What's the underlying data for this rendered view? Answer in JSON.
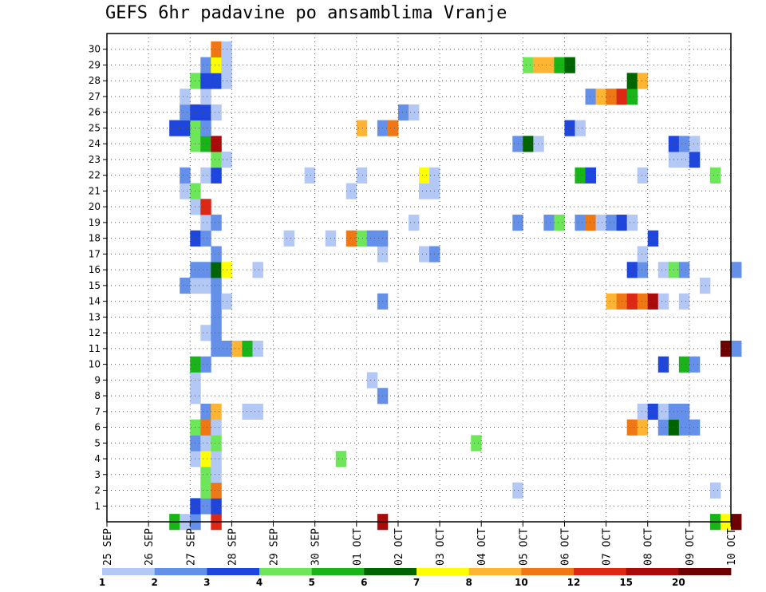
{
  "title": "GEFS 6hr padavine po ansamblima Vranje",
  "chart_data": {
    "type": "heatmap",
    "title": "GEFS 6hr padavine po ansamblima Vranje",
    "x_tick_labels": [
      "25 SEP",
      "26 SEP",
      "27 SEP",
      "28 SEP",
      "29 SEP",
      "30 SEP",
      "01 OCT",
      "02 OCT",
      "03 OCT",
      "04 OCT",
      "05 OCT",
      "06 OCT",
      "07 OCT",
      "08 OCT",
      "09 OCT",
      "10 OCT"
    ],
    "y_tick_labels": [
      "1",
      "2",
      "3",
      "4",
      "5",
      "6",
      "7",
      "8",
      "9",
      "10",
      "11",
      "12",
      "13",
      "14",
      "15",
      "16",
      "17",
      "18",
      "19",
      "20",
      "21",
      "22",
      "23",
      "24",
      "25",
      "26",
      "27",
      "28",
      "29",
      "30"
    ],
    "y_range": [
      0,
      30
    ],
    "x_steps_per_day": 4,
    "grid": true,
    "legend_placement": "bottom",
    "color_scale": {
      "colors": [
        "#b4c8f5",
        "#6490ea",
        "#1e46dc",
        "#6ee65a",
        "#18b418",
        "#006400",
        "#ffff00",
        "#ffb432",
        "#f07814",
        "#dc2814",
        "#aa0a0a",
        "#6e0000"
      ],
      "labels": [
        "1",
        "2",
        "3",
        "4",
        "5",
        "6",
        "7",
        "8",
        "10",
        "12",
        "15",
        "20"
      ]
    },
    "cells": [
      [
        0,
        6,
        5
      ],
      [
        0,
        7,
        1
      ],
      [
        0,
        8,
        2
      ],
      [
        0,
        10,
        10
      ],
      [
        0,
        26,
        11
      ],
      [
        0,
        58,
        5
      ],
      [
        0,
        59,
        7
      ],
      [
        0,
        60,
        12
      ],
      [
        1,
        8,
        3
      ],
      [
        1,
        9,
        2
      ],
      [
        1,
        10,
        3
      ],
      [
        2,
        9,
        4
      ],
      [
        2,
        10,
        9
      ],
      [
        2,
        39,
        1
      ],
      [
        2,
        58,
        1
      ],
      [
        3,
        9,
        4
      ],
      [
        3,
        10,
        1
      ],
      [
        4,
        8,
        1
      ],
      [
        4,
        9,
        7
      ],
      [
        4,
        10,
        1
      ],
      [
        4,
        22,
        4
      ],
      [
        5,
        8,
        2
      ],
      [
        5,
        9,
        1
      ],
      [
        5,
        10,
        4
      ],
      [
        5,
        35,
        4
      ],
      [
        6,
        8,
        4
      ],
      [
        6,
        9,
        9
      ],
      [
        6,
        10,
        1
      ],
      [
        6,
        50,
        9
      ],
      [
        6,
        51,
        8
      ],
      [
        6,
        53,
        2
      ],
      [
        6,
        54,
        6
      ],
      [
        6,
        55,
        2
      ],
      [
        6,
        56,
        2
      ],
      [
        7,
        9,
        2
      ],
      [
        7,
        10,
        8
      ],
      [
        7,
        13,
        1
      ],
      [
        7,
        14,
        1
      ],
      [
        7,
        51,
        1
      ],
      [
        7,
        52,
        3
      ],
      [
        7,
        53,
        1
      ],
      [
        7,
        54,
        2
      ],
      [
        7,
        55,
        2
      ],
      [
        8,
        8,
        1
      ],
      [
        8,
        26,
        2
      ],
      [
        9,
        8,
        1
      ],
      [
        9,
        25,
        1
      ],
      [
        10,
        8,
        5
      ],
      [
        10,
        9,
        2
      ],
      [
        10,
        53,
        3
      ],
      [
        10,
        55,
        5
      ],
      [
        10,
        56,
        2
      ],
      [
        11,
        10,
        2
      ],
      [
        11,
        11,
        2
      ],
      [
        11,
        12,
        8
      ],
      [
        11,
        13,
        5
      ],
      [
        11,
        14,
        1
      ],
      [
        11,
        59,
        12
      ],
      [
        11,
        60,
        2
      ],
      [
        12,
        9,
        1
      ],
      [
        12,
        10,
        2
      ],
      [
        13,
        10,
        2
      ],
      [
        14,
        10,
        2
      ],
      [
        14,
        11,
        1
      ],
      [
        14,
        26,
        2
      ],
      [
        14,
        48,
        8
      ],
      [
        14,
        49,
        9
      ],
      [
        14,
        50,
        10
      ],
      [
        14,
        51,
        9
      ],
      [
        14,
        52,
        11
      ],
      [
        14,
        53,
        1
      ],
      [
        14,
        55,
        1
      ],
      [
        15,
        7,
        2
      ],
      [
        15,
        8,
        1
      ],
      [
        15,
        9,
        1
      ],
      [
        15,
        10,
        2
      ],
      [
        15,
        57,
        1
      ],
      [
        16,
        8,
        2
      ],
      [
        16,
        9,
        2
      ],
      [
        16,
        10,
        6
      ],
      [
        16,
        11,
        7
      ],
      [
        16,
        14,
        1
      ],
      [
        16,
        50,
        3
      ],
      [
        16,
        51,
        2
      ],
      [
        16,
        53,
        1
      ],
      [
        16,
        54,
        4
      ],
      [
        16,
        55,
        2
      ],
      [
        16,
        60,
        2
      ],
      [
        17,
        10,
        2
      ],
      [
        17,
        26,
        1
      ],
      [
        17,
        30,
        1
      ],
      [
        17,
        31,
        2
      ],
      [
        17,
        51,
        1
      ],
      [
        18,
        8,
        3
      ],
      [
        18,
        9,
        2
      ],
      [
        18,
        17,
        1
      ],
      [
        18,
        21,
        1
      ],
      [
        18,
        23,
        9
      ],
      [
        18,
        24,
        4
      ],
      [
        18,
        25,
        2
      ],
      [
        18,
        26,
        2
      ],
      [
        18,
        52,
        3
      ],
      [
        19,
        9,
        1
      ],
      [
        19,
        10,
        2
      ],
      [
        19,
        29,
        1
      ],
      [
        19,
        39,
        2
      ],
      [
        19,
        42,
        2
      ],
      [
        19,
        43,
        4
      ],
      [
        19,
        45,
        2
      ],
      [
        19,
        46,
        9
      ],
      [
        19,
        47,
        1
      ],
      [
        19,
        48,
        2
      ],
      [
        19,
        49,
        3
      ],
      [
        19,
        50,
        1
      ],
      [
        20,
        8,
        1
      ],
      [
        20,
        9,
        10
      ],
      [
        21,
        7,
        1
      ],
      [
        21,
        8,
        4
      ],
      [
        21,
        23,
        1
      ],
      [
        21,
        30,
        1
      ],
      [
        21,
        31,
        1
      ],
      [
        22,
        7,
        2
      ],
      [
        22,
        9,
        1
      ],
      [
        22,
        10,
        3
      ],
      [
        22,
        19,
        1
      ],
      [
        22,
        24,
        1
      ],
      [
        22,
        30,
        7
      ],
      [
        22,
        31,
        1
      ],
      [
        22,
        45,
        5
      ],
      [
        22,
        46,
        3
      ],
      [
        22,
        51,
        1
      ],
      [
        22,
        58,
        4
      ],
      [
        23,
        10,
        4
      ],
      [
        23,
        11,
        1
      ],
      [
        23,
        54,
        1
      ],
      [
        23,
        55,
        1
      ],
      [
        23,
        56,
        3
      ],
      [
        24,
        8,
        4
      ],
      [
        24,
        9,
        5
      ],
      [
        24,
        10,
        11
      ],
      [
        24,
        39,
        2
      ],
      [
        24,
        40,
        6
      ],
      [
        24,
        41,
        1
      ],
      [
        24,
        54,
        3
      ],
      [
        24,
        55,
        2
      ],
      [
        24,
        56,
        1
      ],
      [
        25,
        6,
        3
      ],
      [
        25,
        7,
        3
      ],
      [
        25,
        8,
        4
      ],
      [
        25,
        9,
        2
      ],
      [
        25,
        24,
        8
      ],
      [
        25,
        26,
        2
      ],
      [
        25,
        27,
        9
      ],
      [
        25,
        44,
        3
      ],
      [
        25,
        45,
        1
      ],
      [
        26,
        7,
        2
      ],
      [
        26,
        8,
        3
      ],
      [
        26,
        9,
        3
      ],
      [
        26,
        10,
        1
      ],
      [
        26,
        28,
        2
      ],
      [
        26,
        29,
        1
      ],
      [
        27,
        7,
        1
      ],
      [
        27,
        9,
        1
      ],
      [
        27,
        46,
        2
      ],
      [
        27,
        47,
        8
      ],
      [
        27,
        48,
        9
      ],
      [
        27,
        49,
        10
      ],
      [
        27,
        50,
        5
      ],
      [
        28,
        8,
        4
      ],
      [
        28,
        9,
        3
      ],
      [
        28,
        10,
        3
      ],
      [
        28,
        11,
        1
      ],
      [
        28,
        50,
        6
      ],
      [
        28,
        51,
        8
      ],
      [
        29,
        9,
        2
      ],
      [
        29,
        10,
        7
      ],
      [
        29,
        11,
        1
      ],
      [
        29,
        40,
        4
      ],
      [
        29,
        41,
        8
      ],
      [
        29,
        42,
        8
      ],
      [
        29,
        43,
        5
      ],
      [
        29,
        44,
        6
      ],
      [
        30,
        10,
        9
      ],
      [
        30,
        11,
        1
      ]
    ]
  }
}
